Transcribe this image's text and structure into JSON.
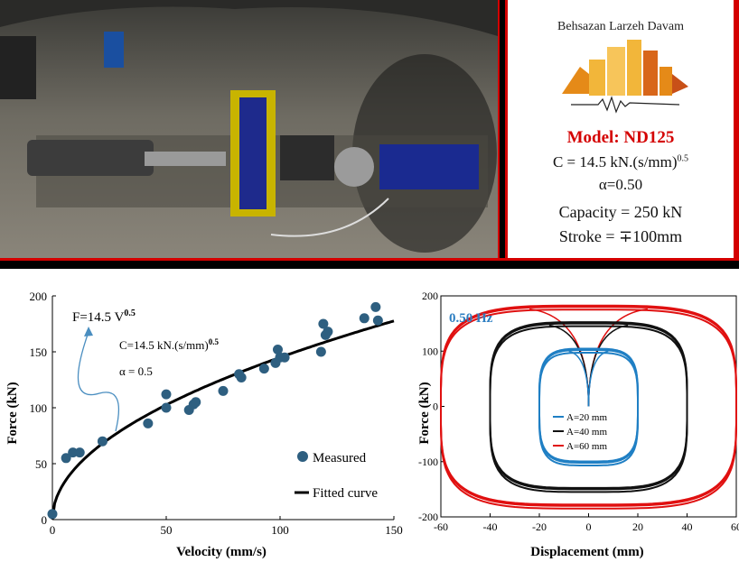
{
  "spec_panel": {
    "company": "Behsazan Larzeh Davam",
    "model": "Model: ND125",
    "coef_main": "C = 14.5 kN.(s/mm)",
    "coef_exp": "0.5",
    "alpha": "α=0.50",
    "capacity": "Capacity = 250 kN",
    "stroke": "Stroke = ∓100mm"
  },
  "colors": {
    "accent_red": "#d40000",
    "marker_blue": "#2e5f80",
    "arrow_blue": "#4a8ec0",
    "label_blue": "#2e7fc2"
  },
  "chart_data": [
    {
      "type": "scatter",
      "xlabel": "Velocity (mm/s)",
      "ylabel": "Force (kN)",
      "xlim": [
        0,
        150
      ],
      "ylim": [
        0,
        200
      ],
      "xticks": [
        0,
        50,
        100,
        150
      ],
      "yticks": [
        0,
        50,
        100,
        150,
        200
      ],
      "annotations": {
        "formula_main": "F=14.5 V",
        "formula_exp": "0.5",
        "coef_main": "C=14.5 kN.(s/mm)",
        "coef_exp": "0.5",
        "alpha": "α = 0.5"
      },
      "legend_position": "bottom-right",
      "series": [
        {
          "name": "Measured",
          "kind": "points",
          "x": [
            0,
            6,
            9,
            12,
            22,
            42,
            50,
            50,
            60,
            62,
            63,
            75,
            82,
            83,
            93,
            98,
            99,
            100,
            102,
            118,
            119,
            120,
            121,
            137,
            142,
            143
          ],
          "y": [
            5,
            55,
            60,
            60,
            70,
            86,
            100,
            112,
            98,
            103,
            105,
            115,
            130,
            127,
            135,
            140,
            152,
            145,
            145,
            150,
            175,
            165,
            168,
            180,
            190,
            178
          ]
        },
        {
          "name": "Fitted curve",
          "kind": "line",
          "equation": "F = 14.5 * V^0.5"
        }
      ]
    },
    {
      "type": "line",
      "xlabel": "Displacement (mm)",
      "ylabel": "Force (kN)",
      "xlim": [
        -60,
        60
      ],
      "ylim": [
        -200,
        200
      ],
      "xticks": [
        -60,
        -40,
        -20,
        0,
        20,
        40,
        60
      ],
      "yticks": [
        -200,
        -100,
        0,
        100,
        200
      ],
      "frequency_label": "0.50 Hz",
      "legend_position": "bottom-center",
      "series": [
        {
          "name": "A=20 mm",
          "color": "#1f7fc4",
          "amplitude": 20,
          "force_max": 102
        },
        {
          "name": "A=40 mm",
          "color": "#111111",
          "amplitude": 40,
          "force_max": 150
        },
        {
          "name": "A=60 mm",
          "color": "#e01010",
          "amplitude": 60,
          "force_max": 180
        }
      ]
    }
  ]
}
